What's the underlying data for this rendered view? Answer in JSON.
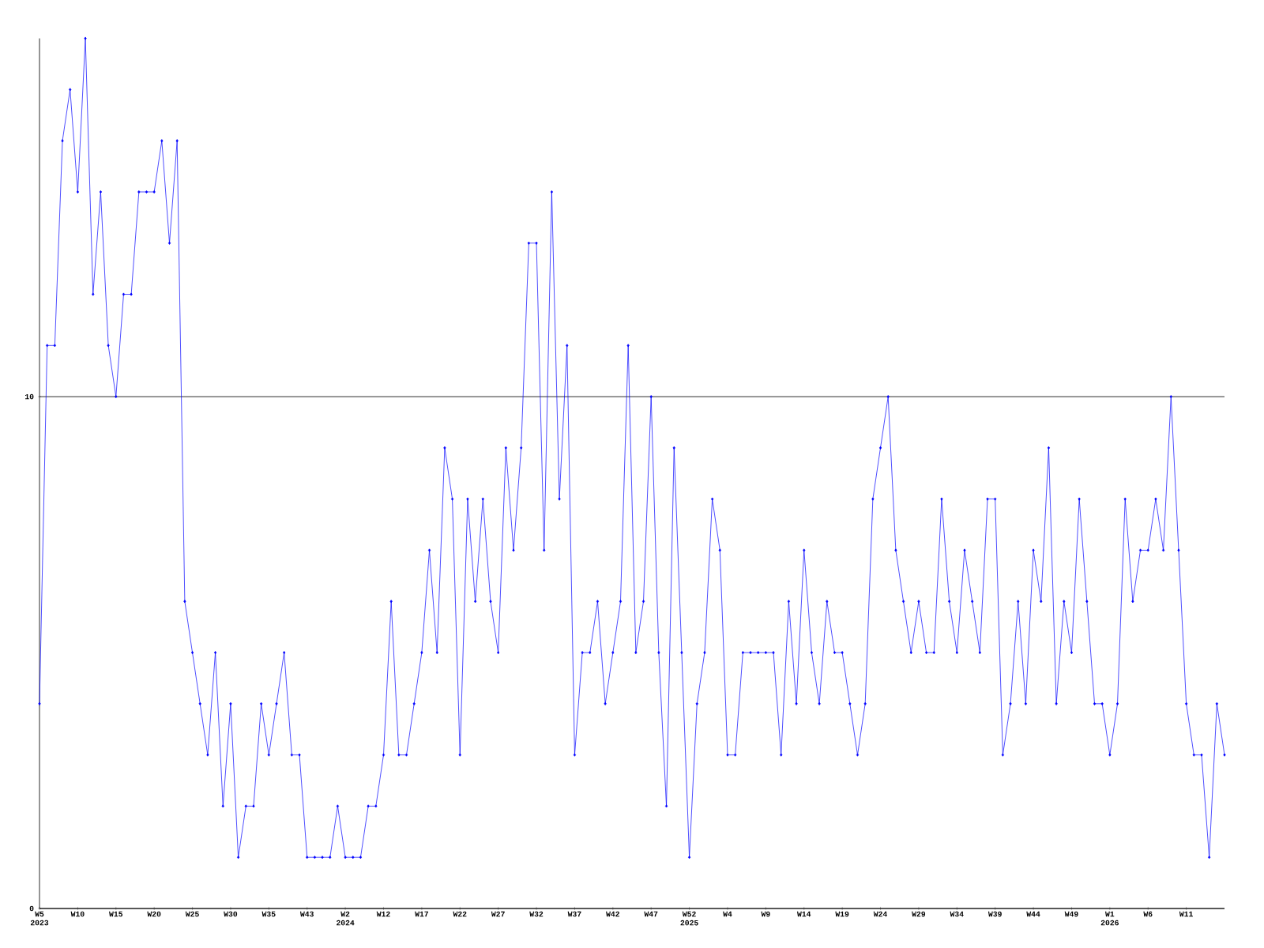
{
  "chart_data": {
    "type": "line",
    "categories": [
      "W5 2023",
      null,
      null,
      null,
      null,
      "W10",
      null,
      null,
      null,
      null,
      "W15",
      null,
      null,
      null,
      null,
      "W20",
      null,
      null,
      null,
      null,
      "W25",
      null,
      null,
      null,
      null,
      "W30",
      null,
      null,
      null,
      null,
      "W35",
      null,
      null,
      null,
      null,
      "W43",
      null,
      null,
      null,
      null,
      "W2 2024",
      null,
      null,
      null,
      null,
      "W12",
      null,
      null,
      null,
      null,
      "W17",
      null,
      null,
      null,
      null,
      "W22",
      null,
      null,
      null,
      null,
      "W27",
      null,
      null,
      null,
      null,
      "W32",
      null,
      null,
      null,
      null,
      "W37",
      null,
      null,
      null,
      null,
      "W42",
      null,
      null,
      null,
      null,
      "W47",
      null,
      null,
      null,
      null,
      "W52 2025",
      null,
      null,
      null,
      null,
      "W4",
      null,
      null,
      null,
      null,
      "W9",
      null,
      null,
      null,
      null,
      "W14",
      null,
      null,
      null,
      null,
      "W19",
      null,
      null,
      null,
      null,
      "W24",
      null,
      null,
      null,
      null,
      "W29",
      null,
      null,
      null,
      null,
      "W34",
      null,
      null,
      null,
      null,
      "W39",
      null,
      null,
      null,
      null,
      "W44",
      null,
      null,
      null,
      null,
      "W49",
      null,
      null,
      null,
      null,
      "W1 2026",
      null,
      null,
      null,
      null,
      "W6",
      null,
      null,
      null,
      null,
      "W11",
      null,
      null,
      null,
      null,
      null
    ],
    "values": [
      4,
      11,
      11,
      15,
      16,
      14,
      17,
      12,
      14,
      11,
      10,
      12,
      12,
      14,
      14,
      14,
      15,
      13,
      15,
      6,
      5,
      4,
      3,
      5,
      2,
      4,
      1,
      2,
      2,
      4,
      3,
      4,
      5,
      3,
      3,
      1,
      1,
      1,
      1,
      2,
      1,
      1,
      1,
      2,
      2,
      3,
      6,
      3,
      3,
      4,
      5,
      7,
      5,
      9,
      8,
      3,
      8,
      6,
      8,
      6,
      5,
      9,
      7,
      9,
      13,
      13,
      7,
      14,
      8,
      11,
      3,
      5,
      5,
      6,
      4,
      5,
      6,
      11,
      5,
      6,
      10,
      5,
      2,
      9,
      5,
      1,
      4,
      5,
      8,
      7,
      3,
      3,
      5,
      5,
      5,
      5,
      5,
      3,
      6,
      4,
      7,
      5,
      4,
      6,
      5,
      5,
      4,
      3,
      4,
      8,
      9,
      10,
      7,
      6,
      5,
      6,
      5,
      5,
      8,
      6,
      5,
      7,
      6,
      5,
      8,
      8,
      3,
      4,
      6,
      4,
      7,
      6,
      9,
      4,
      6,
      5,
      8,
      6,
      4,
      4,
      3,
      4,
      8,
      6,
      7,
      7,
      8,
      7,
      10,
      7,
      4,
      3,
      3,
      1,
      4,
      3
    ],
    "color": "#0000ff",
    "marker": "diamond",
    "grid": "y",
    "ylim": [
      0,
      17
    ],
    "yticks": [
      0,
      10
    ]
  }
}
